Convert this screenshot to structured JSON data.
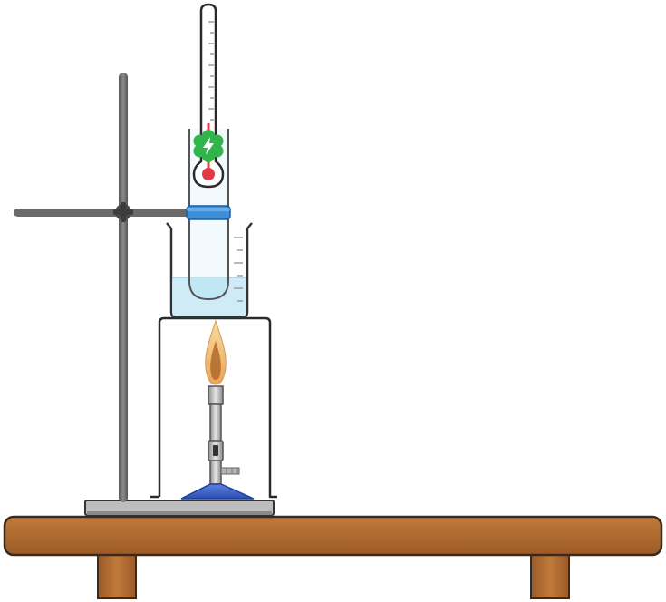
{
  "apparatus": {
    "items": [
      "table",
      "ring-stand",
      "clamp",
      "beaker",
      "test-tube",
      "thermometer",
      "bunsen-burner",
      "burner-shield",
      "flame",
      "power-badge"
    ],
    "icons": {
      "badge": "lightning-bolt-icon"
    }
  },
  "colors": {
    "wood": "#b46a2e",
    "wood_edge": "#3a2a1e",
    "metal": "#6e6e6e",
    "water": "#c6e8f4",
    "tube_cap": "#3c8fd8",
    "burner_base": "#3e64c8",
    "badge": "#2fb54a",
    "mercury": "#e03a4a",
    "flame_outer": "#f2c27a",
    "flame_inner": "#b06a2a"
  }
}
